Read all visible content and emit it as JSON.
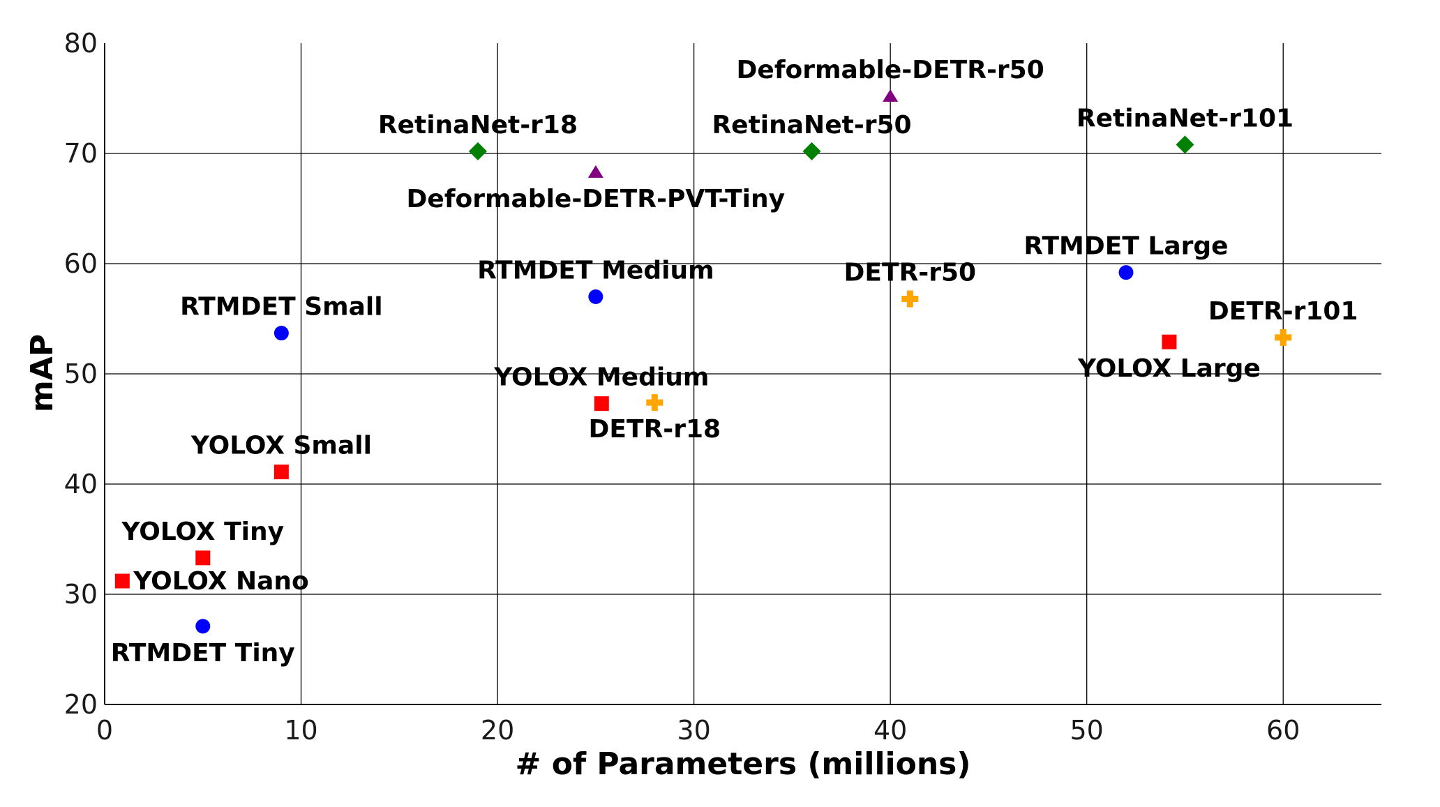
{
  "chart_data": {
    "type": "scatter",
    "title": "",
    "xlabel": "# of Parameters (millions)",
    "ylabel": "mAP",
    "xlim": [
      0,
      65
    ],
    "ylim": [
      20,
      80
    ],
    "xticks": [
      "0",
      "10",
      "20",
      "30",
      "40",
      "50",
      "60"
    ],
    "yticks": [
      "20",
      "30",
      "40",
      "50",
      "60",
      "70",
      "80"
    ],
    "grid": true,
    "legend": "none",
    "colors": {
      "RTMDET": "#0000ff",
      "YOLOX": "#ff0000",
      "RetinaNet": "#008000",
      "DETR": "#ffa500",
      "Deformable-DETR": "#800080"
    },
    "markers": {
      "RTMDET": "circle",
      "YOLOX": "square",
      "RetinaNet": "diamond",
      "DETR": "plus",
      "Deformable-DETR": "triangle"
    },
    "points": [
      {
        "label": "RTMDET Tiny",
        "family": "RTMDET",
        "x": 5,
        "y": 27.1,
        "label_pos": "below"
      },
      {
        "label": "RTMDET Small",
        "family": "RTMDET",
        "x": 9,
        "y": 53.7,
        "label_pos": "above"
      },
      {
        "label": "RTMDET Medium",
        "family": "RTMDET",
        "x": 25,
        "y": 57.0,
        "label_pos": "above"
      },
      {
        "label": "RTMDET Large",
        "family": "RTMDET",
        "x": 52,
        "y": 59.2,
        "label_pos": "above"
      },
      {
        "label": "YOLOX Nano",
        "family": "YOLOX",
        "x": 0.9,
        "y": 31.2,
        "label_pos": "right"
      },
      {
        "label": "YOLOX Tiny",
        "family": "YOLOX",
        "x": 5,
        "y": 33.3,
        "label_pos": "above"
      },
      {
        "label": "YOLOX Small",
        "family": "YOLOX",
        "x": 9,
        "y": 41.1,
        "label_pos": "above"
      },
      {
        "label": "YOLOX Medium",
        "family": "YOLOX",
        "x": 25.3,
        "y": 47.3,
        "label_pos": "above"
      },
      {
        "label": "YOLOX Large",
        "family": "YOLOX",
        "x": 54.2,
        "y": 52.9,
        "label_pos": "below"
      },
      {
        "label": "RetinaNet-r18",
        "family": "RetinaNet",
        "x": 19,
        "y": 70.2,
        "label_pos": "above"
      },
      {
        "label": "RetinaNet-r50",
        "family": "RetinaNet",
        "x": 36,
        "y": 70.2,
        "label_pos": "above"
      },
      {
        "label": "RetinaNet-r101",
        "family": "RetinaNet",
        "x": 55,
        "y": 70.8,
        "label_pos": "above"
      },
      {
        "label": "DETR-r18",
        "family": "DETR",
        "x": 28,
        "y": 47.4,
        "label_pos": "below"
      },
      {
        "label": "DETR-r50",
        "family": "DETR",
        "x": 41,
        "y": 56.8,
        "label_pos": "above"
      },
      {
        "label": "DETR-r101",
        "family": "DETR",
        "x": 60,
        "y": 53.3,
        "label_pos": "above"
      },
      {
        "label": "Deformable-DETR-PVT-Tiny",
        "family": "Deformable-DETR",
        "x": 25,
        "y": 68.3,
        "label_pos": "below"
      },
      {
        "label": "Deformable-DETR-r50",
        "family": "Deformable-DETR",
        "x": 40,
        "y": 75.2,
        "label_pos": "above"
      }
    ]
  }
}
